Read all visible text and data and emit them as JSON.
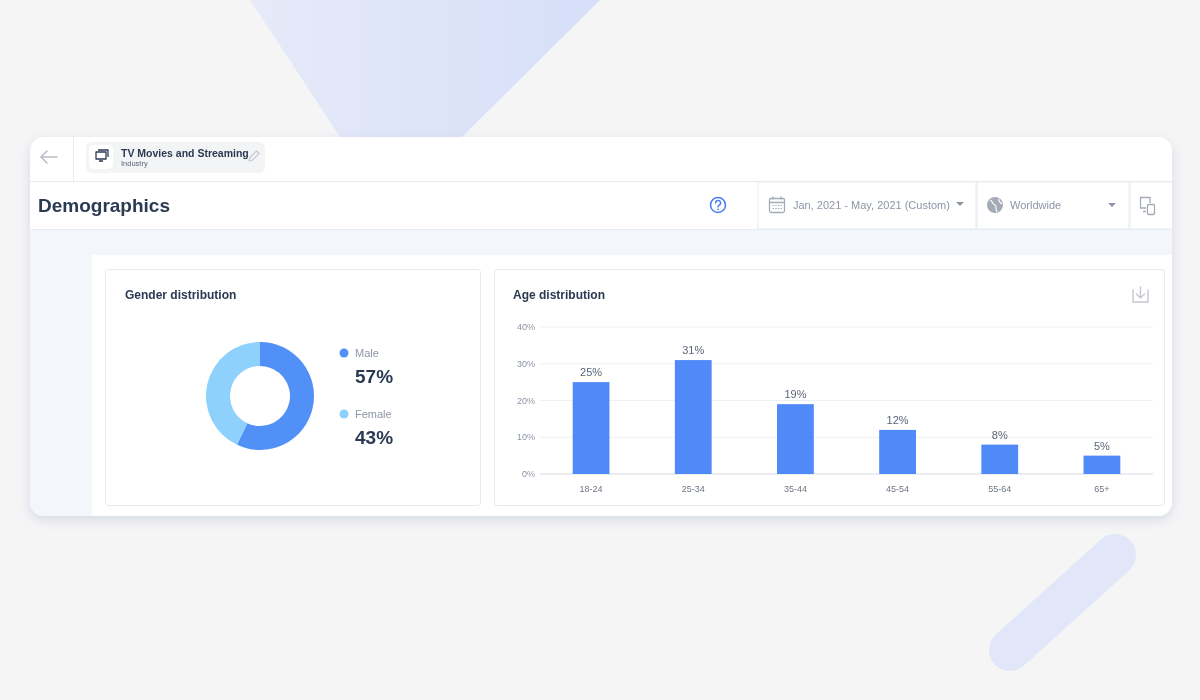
{
  "chart_data": [
    {
      "type": "other",
      "title": "Demographics",
      "annotations": [
        "TV Movies and Streaming",
        "Industry",
        "Jan, 2021 - May, 2021 (Custom)",
        "Worldwide"
      ]
    },
    {
      "type": "donut",
      "title": "Gender distribution",
      "categories": [
        "Male",
        "Female"
      ],
      "values": [
        57,
        43
      ],
      "colors": [
        "#5190f7",
        "#8fd1fd"
      ],
      "value_labels": [
        "57%",
        "43%"
      ],
      "legend": "right"
    },
    {
      "type": "bar",
      "title": "Age distribution",
      "categories": [
        "18-24",
        "25-34",
        "35-44",
        "45-54",
        "55-64",
        "65+"
      ],
      "values": [
        25,
        31,
        19,
        12,
        8,
        5
      ],
      "color": "#5089f8",
      "ylim": [
        0,
        40
      ],
      "yticks": [
        {
          "value": 0,
          "label": "0%"
        },
        {
          "value": 10,
          "label": "10%"
        },
        {
          "value": 20,
          "label": "20%"
        },
        {
          "value": 30,
          "label": "30%"
        },
        {
          "value": 40,
          "label": "40%"
        }
      ],
      "grid": "y",
      "value_labels": [
        "25%",
        "31%",
        "19%",
        "12%",
        "8%",
        "5%"
      ]
    }
  ]
}
